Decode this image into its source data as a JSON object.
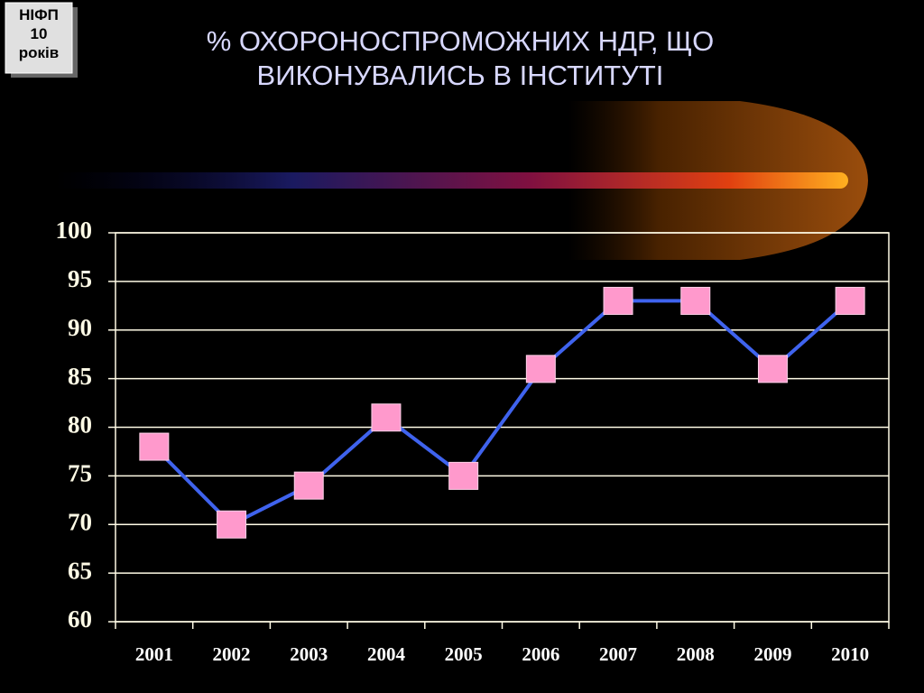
{
  "badge": [
    "НІФП",
    "10",
    "років"
  ],
  "chart_data": {
    "type": "line",
    "title": [
      "% ОХОРОНОСПРОМОЖНИХ НДР, ЩО",
      "ВИКОНУВАЛИСЬ В ІНСТИТУТІ"
    ],
    "categories": [
      "2001",
      "2002",
      "2003",
      "2004",
      "2005",
      "2006",
      "2007",
      "2008",
      "2009",
      "2010"
    ],
    "series": [
      {
        "color": "#3f63ee",
        "marker_color": "#ff99cc",
        "values": [
          78,
          70,
          74,
          81,
          75,
          86,
          93,
          93,
          86,
          93
        ]
      }
    ],
    "ylim": [
      60,
      100
    ],
    "yticks": [
      60,
      65,
      70,
      75,
      80,
      85,
      90,
      95,
      100
    ],
    "grid": true
  }
}
